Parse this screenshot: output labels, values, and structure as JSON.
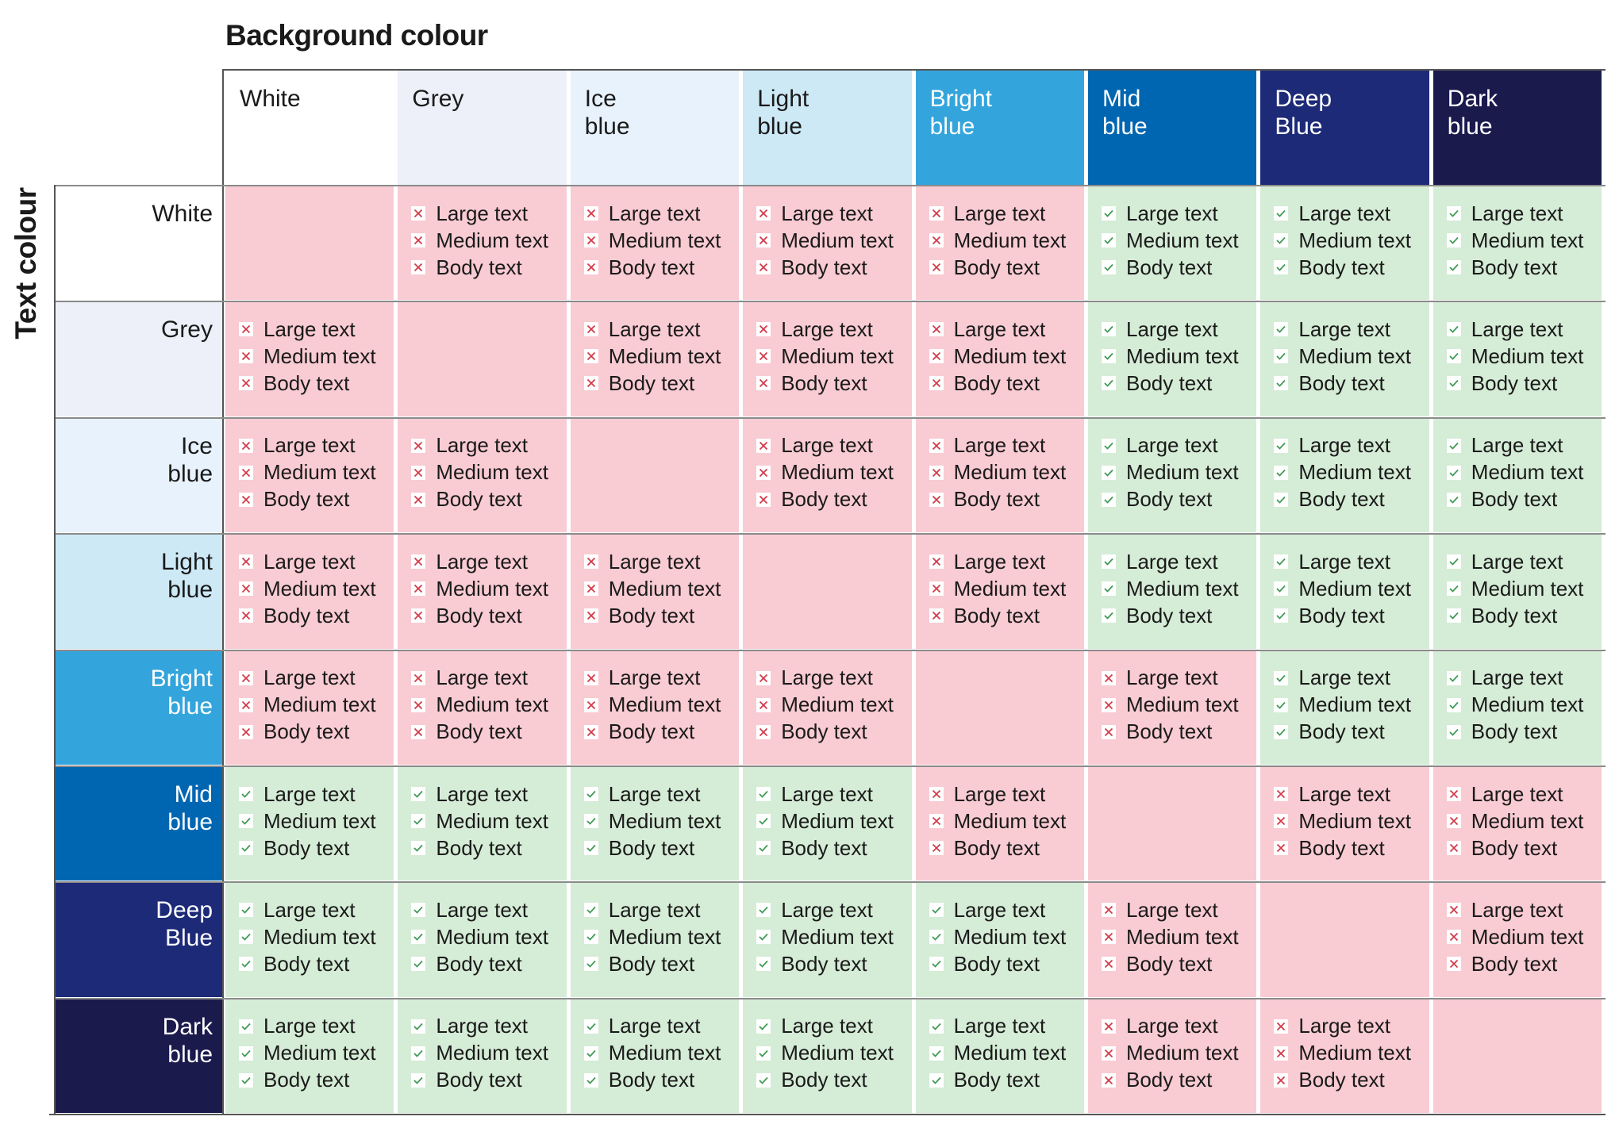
{
  "header": {
    "title": "Background colour",
    "side_label": "Text colour"
  },
  "colours": [
    {
      "name": "White",
      "background": "#ffffff",
      "foreground": "#1a1a1a"
    },
    {
      "name": "Grey",
      "background": "#edf0f8",
      "foreground": "#1a1a1a"
    },
    {
      "name": "Ice\nblue",
      "background": "#e8f2fc",
      "foreground": "#1a1a1a"
    },
    {
      "name": "Light\nblue",
      "background": "#cde9f6",
      "foreground": "#1a1a1a"
    },
    {
      "name": "Bright\nblue",
      "background": "#34a5dc",
      "foreground": "#ffffff"
    },
    {
      "name": "Mid\nblue",
      "background": "#0166b1",
      "foreground": "#ffffff"
    },
    {
      "name": "Deep\nBlue",
      "background": "#1d2a78",
      "foreground": "#ffffff"
    },
    {
      "name": "Dark\nblue",
      "background": "#1a1a4d",
      "foreground": "#ffffff"
    }
  ],
  "criteria": [
    "Large text",
    "Medium text",
    "Body text"
  ],
  "status_colours": {
    "pass": "#d5ecd6",
    "fail": "#f9cbd3",
    "none": "#f9cbd3"
  },
  "matrix": [
    [
      null,
      "fail",
      "fail",
      "fail",
      "fail",
      "pass",
      "pass",
      "pass"
    ],
    [
      "fail",
      null,
      "fail",
      "fail",
      "fail",
      "pass",
      "pass",
      "pass"
    ],
    [
      "fail",
      "fail",
      null,
      "fail",
      "fail",
      "pass",
      "pass",
      "pass"
    ],
    [
      "fail",
      "fail",
      "fail",
      null,
      "fail",
      "pass",
      "pass",
      "pass"
    ],
    [
      "fail",
      "fail",
      "fail",
      "fail",
      null,
      "fail",
      "pass",
      "pass"
    ],
    [
      "pass",
      "pass",
      "pass",
      "pass",
      "fail",
      null,
      "fail",
      "fail"
    ],
    [
      "pass",
      "pass",
      "pass",
      "pass",
      "pass",
      "fail",
      null,
      "fail"
    ],
    [
      "pass",
      "pass",
      "pass",
      "pass",
      "pass",
      "fail",
      "fail",
      null
    ]
  ]
}
